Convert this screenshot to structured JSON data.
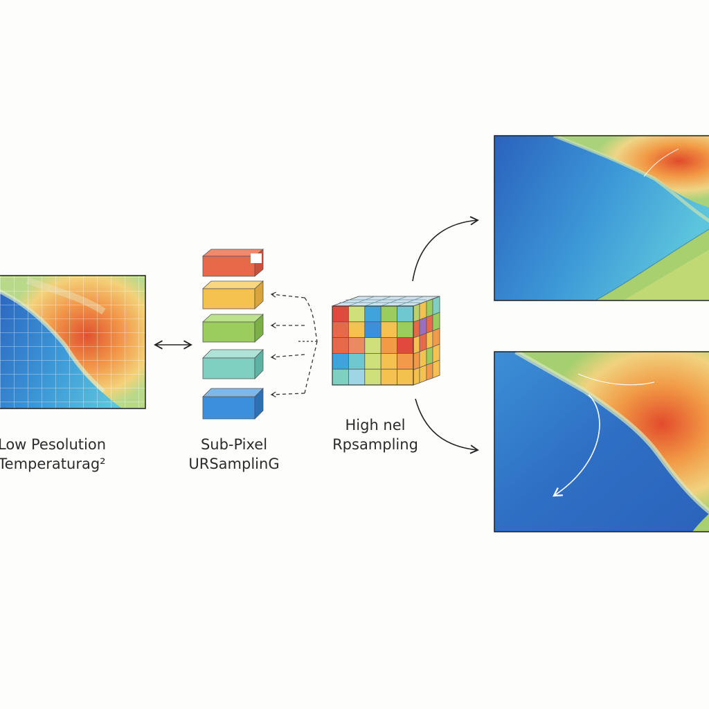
{
  "captions": {
    "low_res": {
      "line1": "Low Pesolution",
      "line2": "Temperaturag²"
    },
    "sub_pixel": {
      "line1": "Sub-Pixel",
      "line2": "URSamplinG"
    },
    "high": {
      "line1": "High nel",
      "line2": "Rpsampling"
    }
  },
  "colors": {
    "ocean_deep": "#2f6fc4",
    "ocean_mid": "#3d95d6",
    "ocean_light": "#56c0dc",
    "land_green": "#9ccf63",
    "land_yellow": "#f2d36b",
    "land_orange": "#f2994a",
    "land_red": "#e0512f",
    "block_red": "#e8694a",
    "block_yellow": "#f6c24f",
    "block_green": "#9acd5e",
    "block_teal": "#7fd0c0",
    "block_blue": "#3b8fdc"
  },
  "blocks": [
    "red",
    "yellow",
    "green",
    "teal",
    "blue"
  ]
}
